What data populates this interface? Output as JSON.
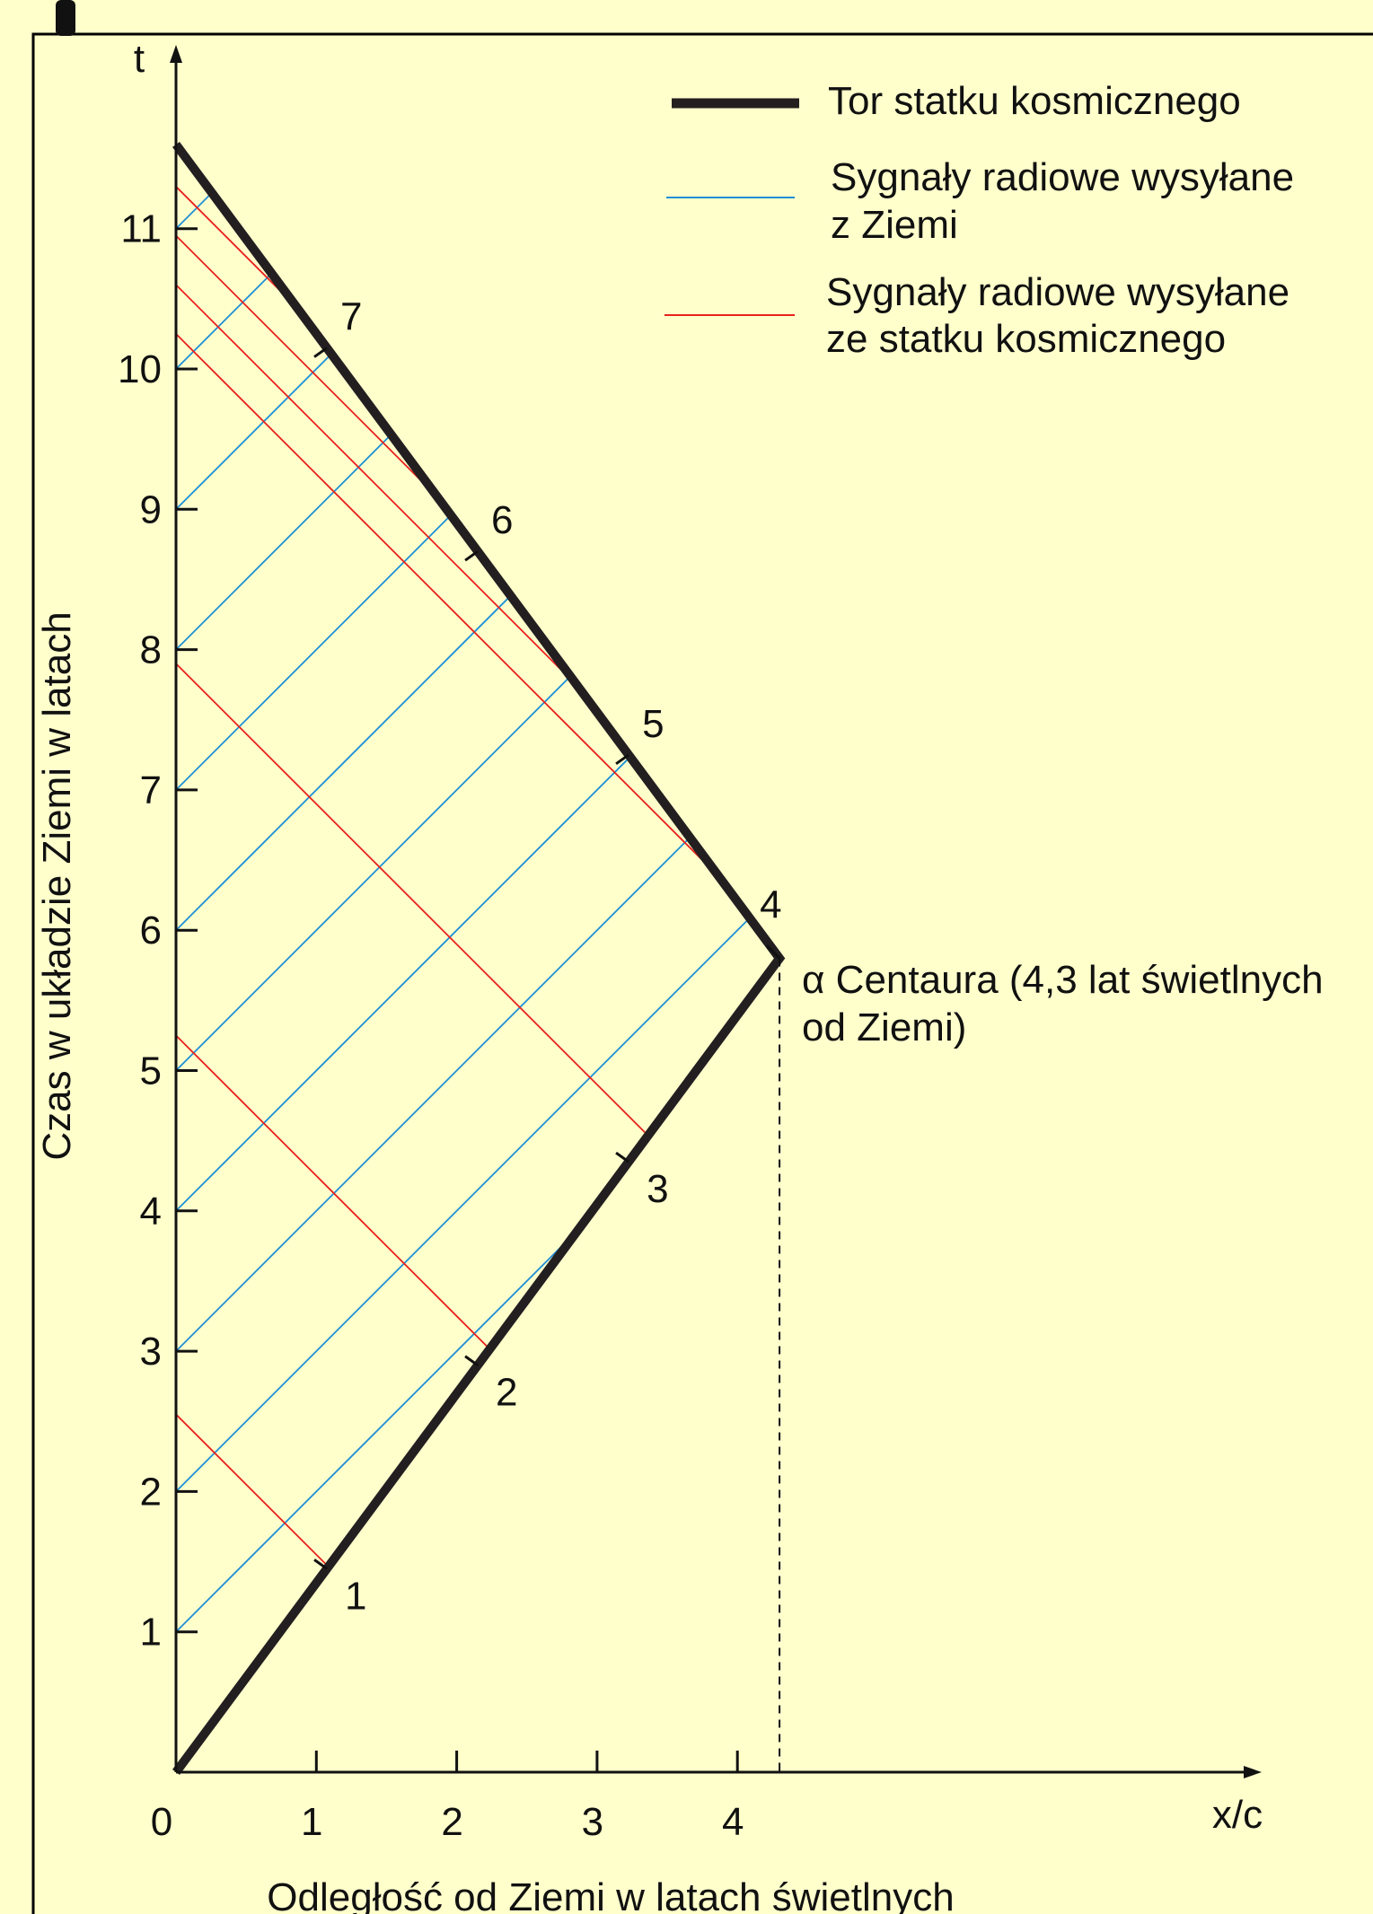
{
  "chart_data": {
    "type": "spacetime-diagram",
    "xlabel": "x/c",
    "ylabel": "t",
    "x_axis_title": "Odległość od Ziemi w latach świetlnych",
    "y_axis_title": "Czas w układzie Ziemi w latach",
    "origin_label": "0",
    "x_ticks": [
      "1",
      "2",
      "3",
      "4"
    ],
    "y_ticks": [
      "1",
      "2",
      "3",
      "4",
      "5",
      "6",
      "7",
      "8",
      "9",
      "10",
      "11"
    ],
    "xlim": [
      0,
      7.7
    ],
    "ylim": [
      0,
      12
    ],
    "spacecraft_path": [
      [
        0,
        0
      ],
      [
        4.3,
        5.8
      ],
      [
        0,
        11.6
      ]
    ],
    "turnaround": {
      "x": 4.3,
      "t": 5.8
    },
    "earth_signal_emission_times": [
      1,
      2,
      3,
      4,
      5,
      6,
      7,
      8,
      9,
      10,
      11
    ],
    "ship_events": [
      {
        "label": "1",
        "t": 1.45
      },
      {
        "label": "2",
        "t": 2.9
      },
      {
        "label": "3",
        "t": 4.35
      },
      {
        "label": "4",
        "t": 5.8
      },
      {
        "label": "5",
        "t": 7.25
      },
      {
        "label": "6",
        "t": 8.7
      },
      {
        "label": "7",
        "t": 10.15
      }
    ],
    "ship_signal_arrival_times": [
      2.55,
      5.25,
      7.9,
      10.25,
      10.6,
      10.95,
      11.3
    ],
    "legend": [
      {
        "label": "Tor statku kosmicznego",
        "color": "#231f20",
        "style": "thick"
      },
      {
        "label_line1": "Sygnały radiowe wysyłane",
        "label_line2": "z Ziemi",
        "color": "#1e8fd6",
        "style": "thin"
      },
      {
        "label_line1": "Sygnały radiowe wysyłane",
        "label_line2": "ze statku kosmicznego",
        "color": "#e8211c",
        "style": "thin"
      }
    ],
    "annotation": {
      "line1": "α Centaura (4,3 lat świetlnych",
      "line2": "od Ziemi)"
    },
    "colors": {
      "background": "#ffffcc",
      "path": "#231f20",
      "earth_signal": "#1e8fd6",
      "ship_signal": "#e8211c",
      "axis": "#111111"
    }
  }
}
